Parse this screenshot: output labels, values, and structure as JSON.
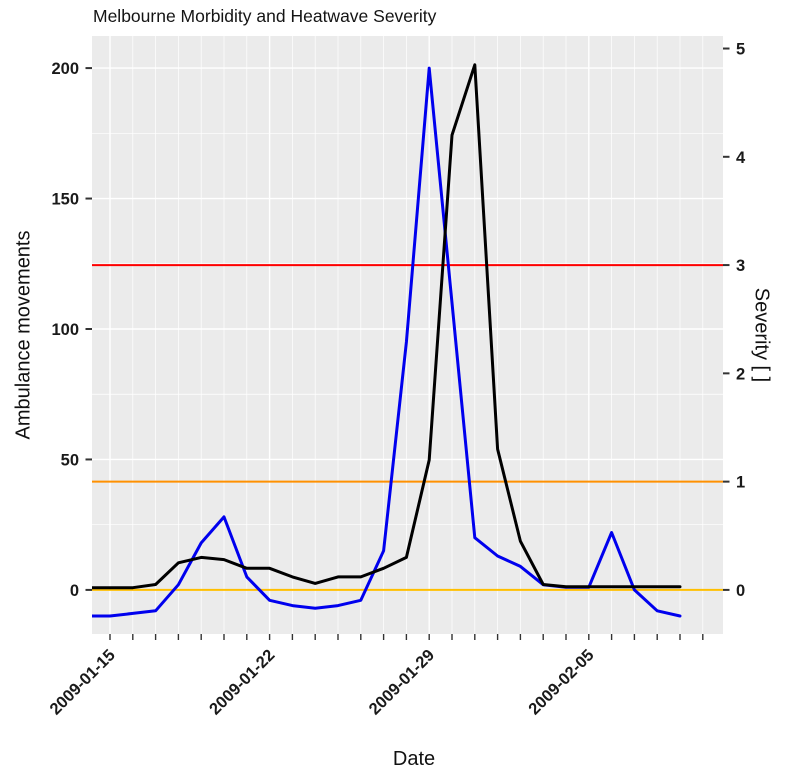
{
  "chart_data": {
    "type": "line",
    "title": "Melbourne Morbidity and Heatwave Severity",
    "xlabel": "Date",
    "ylabel_left": "Ambulance movements",
    "ylabel_right": "Severity [ ]",
    "x_dates": [
      "2009-01-14",
      "2009-01-15",
      "2009-01-16",
      "2009-01-17",
      "2009-01-18",
      "2009-01-19",
      "2009-01-20",
      "2009-01-21",
      "2009-01-22",
      "2009-01-23",
      "2009-01-24",
      "2009-01-25",
      "2009-01-26",
      "2009-01-27",
      "2009-01-28",
      "2009-01-29",
      "2009-01-30",
      "2009-01-31",
      "2009-02-01",
      "2009-02-02",
      "2009-02-03",
      "2009-02-04",
      "2009-02-05",
      "2009-02-06",
      "2009-02-07",
      "2009-02-08",
      "2009-02-09"
    ],
    "series": [
      {
        "name": "ambulance-movements",
        "axis": "left",
        "color": "#0000EE",
        "values": [
          -10,
          -10,
          -9,
          -8,
          2,
          18,
          28,
          5,
          -4,
          -6,
          -7,
          -6,
          -4,
          15,
          95,
          200,
          110,
          20,
          13,
          9,
          2,
          1,
          1,
          22,
          0,
          -8,
          -10
        ]
      },
      {
        "name": "heatwave-severity",
        "axis": "right",
        "color": "#000000",
        "values": [
          0.02,
          0.02,
          0.02,
          0.05,
          0.25,
          0.3,
          0.28,
          0.2,
          0.2,
          0.12,
          0.06,
          0.12,
          0.12,
          0.2,
          0.3,
          1.2,
          4.2,
          4.85,
          1.3,
          0.45,
          0.05,
          0.03,
          0.03,
          0.03,
          0.03,
          0.03,
          0.03
        ]
      }
    ],
    "reference_lines": [
      {
        "name": "severity-3",
        "axis": "right",
        "value": 3,
        "color": "#FF0000"
      },
      {
        "name": "severity-1",
        "axis": "right",
        "value": 1,
        "color": "#FF9100"
      },
      {
        "name": "severity-0",
        "axis": "right",
        "value": 0,
        "color": "#FFBF00"
      }
    ],
    "left_axis_ticks": [
      0,
      50,
      100,
      150,
      200
    ],
    "right_axis_ticks": [
      0,
      1,
      2,
      3,
      4,
      5
    ],
    "x_axis_ticks": [
      {
        "label": "2009-01-15",
        "index": 1
      },
      {
        "label": "2009-01-22",
        "index": 8
      },
      {
        "label": "2009-01-29",
        "index": 15
      },
      {
        "label": "2009-02-05",
        "index": 22
      }
    ],
    "ylim_left": [
      -16.9,
      212.3
    ],
    "severity_to_left_scale": 41.5,
    "panel_background": "#EBEBEB",
    "figure_background": "#FFFFFF",
    "grid_color": "#FFFFFF",
    "legend": "none"
  }
}
